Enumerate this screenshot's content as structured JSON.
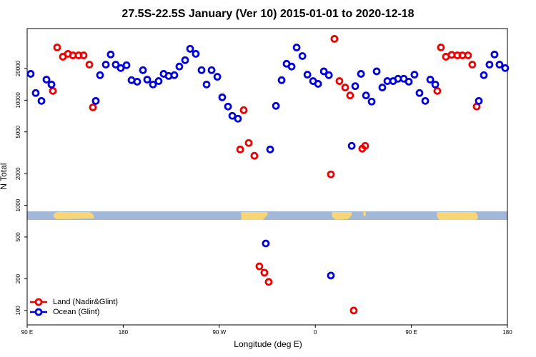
{
  "chart_data": {
    "type": "scatter",
    "title": "27.5S-22.5S January (Ver 10)   2015-01-01 to 2020-12-18",
    "x_label": "Longitude (deg E)",
    "y_label": "N Total",
    "log_y": true,
    "legend": "lower left",
    "xlim": [
      90,
      540
    ],
    "xticks": [
      {
        "value": 90,
        "label": "90 E"
      },
      180,
      {
        "value": 270,
        "label": "90 W"
      },
      {
        "value": 360,
        "label": "0"
      },
      {
        "value": 450,
        "label": "90 E"
      },
      {
        "value": 540,
        "label": "180"
      }
    ],
    "ylim": [
      73,
      48000
    ],
    "yticks": [
      100,
      200,
      500,
      1000,
      2000,
      5000,
      10000,
      20000
    ],
    "series": [
      {
        "name": "Land (Nadir&Glint)",
        "color": "#ee0000",
        "x": [
          114.1,
          118.1,
          123.5,
          128.2,
          132.9,
          138.2,
          142.9,
          148.3,
          151.6,
          289.6,
          292.9,
          297.6,
          302.9,
          307.6,
          312.3,
          316.3,
          374.6,
          377.9,
          382.6,
          388,
          392.6,
          396,
          404,
          406.7,
          474.3,
          477.7,
          482.4,
          487.7,
          493.1,
          497.8,
          503.1,
          507.1,
          511.2
        ],
        "values": [
          12250,
          31750,
          25900,
          27600,
          26700,
          26700,
          26700,
          21800,
          8550,
          3400,
          8040,
          3920,
          2960,
          263,
          229,
          187,
          1970,
          38300,
          15200,
          13200,
          11100,
          100,
          3460,
          3680,
          12250,
          31750,
          25900,
          27000,
          26700,
          26700,
          26700,
          21800,
          8700
        ]
      },
      {
        "name": "Ocean (Glint)",
        "color": "#0000dd",
        "x": [
          93.3,
          98,
          103.4,
          108.1,
          112.8,
          154.3,
          158.3,
          163.7,
          168.3,
          173,
          177.7,
          183.1,
          187.8,
          193.1,
          198.5,
          202.5,
          207.9,
          213.2,
          217.9,
          222.6,
          227.9,
          232.6,
          238,
          242.7,
          248,
          253.4,
          258.1,
          262.8,
          268.2,
          272.8,
          278.2,
          282.2,
          287.5,
          313.6,
          317.7,
          323.1,
          328.4,
          333.1,
          337.8,
          342.5,
          347.9,
          352.6,
          357.9,
          362.6,
          368,
          372.7,
          374.6,
          394.1,
          397.4,
          402.8,
          407.5,
          412.8,
          417.5,
          422.8,
          427.5,
          432.9,
          437.5,
          442.9,
          447.6,
          452.9,
          457.6,
          463,
          467.7,
          472.4,
          513.2,
          517.9,
          523.2,
          527.9,
          532.6,
          537.9
        ],
        "values": [
          17800,
          11700,
          9840,
          15700,
          14100,
          9840,
          17300,
          21800,
          27200,
          21800,
          20200,
          21500,
          15500,
          15000,
          19300,
          15700,
          14100,
          15200,
          17800,
          17000,
          17300,
          20900,
          24000,
          30800,
          27600,
          19300,
          14100,
          19300,
          16700,
          10650,
          8700,
          7100,
          6670,
          434,
          3400,
          8830,
          15500,
          22200,
          20900,
          31700,
          26300,
          17500,
          15200,
          14300,
          18800,
          17300,
          215,
          3680,
          13600,
          17800,
          11100,
          9700,
          18800,
          13200,
          15200,
          15200,
          16000,
          16000,
          15000,
          17500,
          11700,
          9840,
          15700,
          14100,
          9840,
          17300,
          21800,
          27200,
          21800,
          20200
        ]
      }
    ]
  }
}
